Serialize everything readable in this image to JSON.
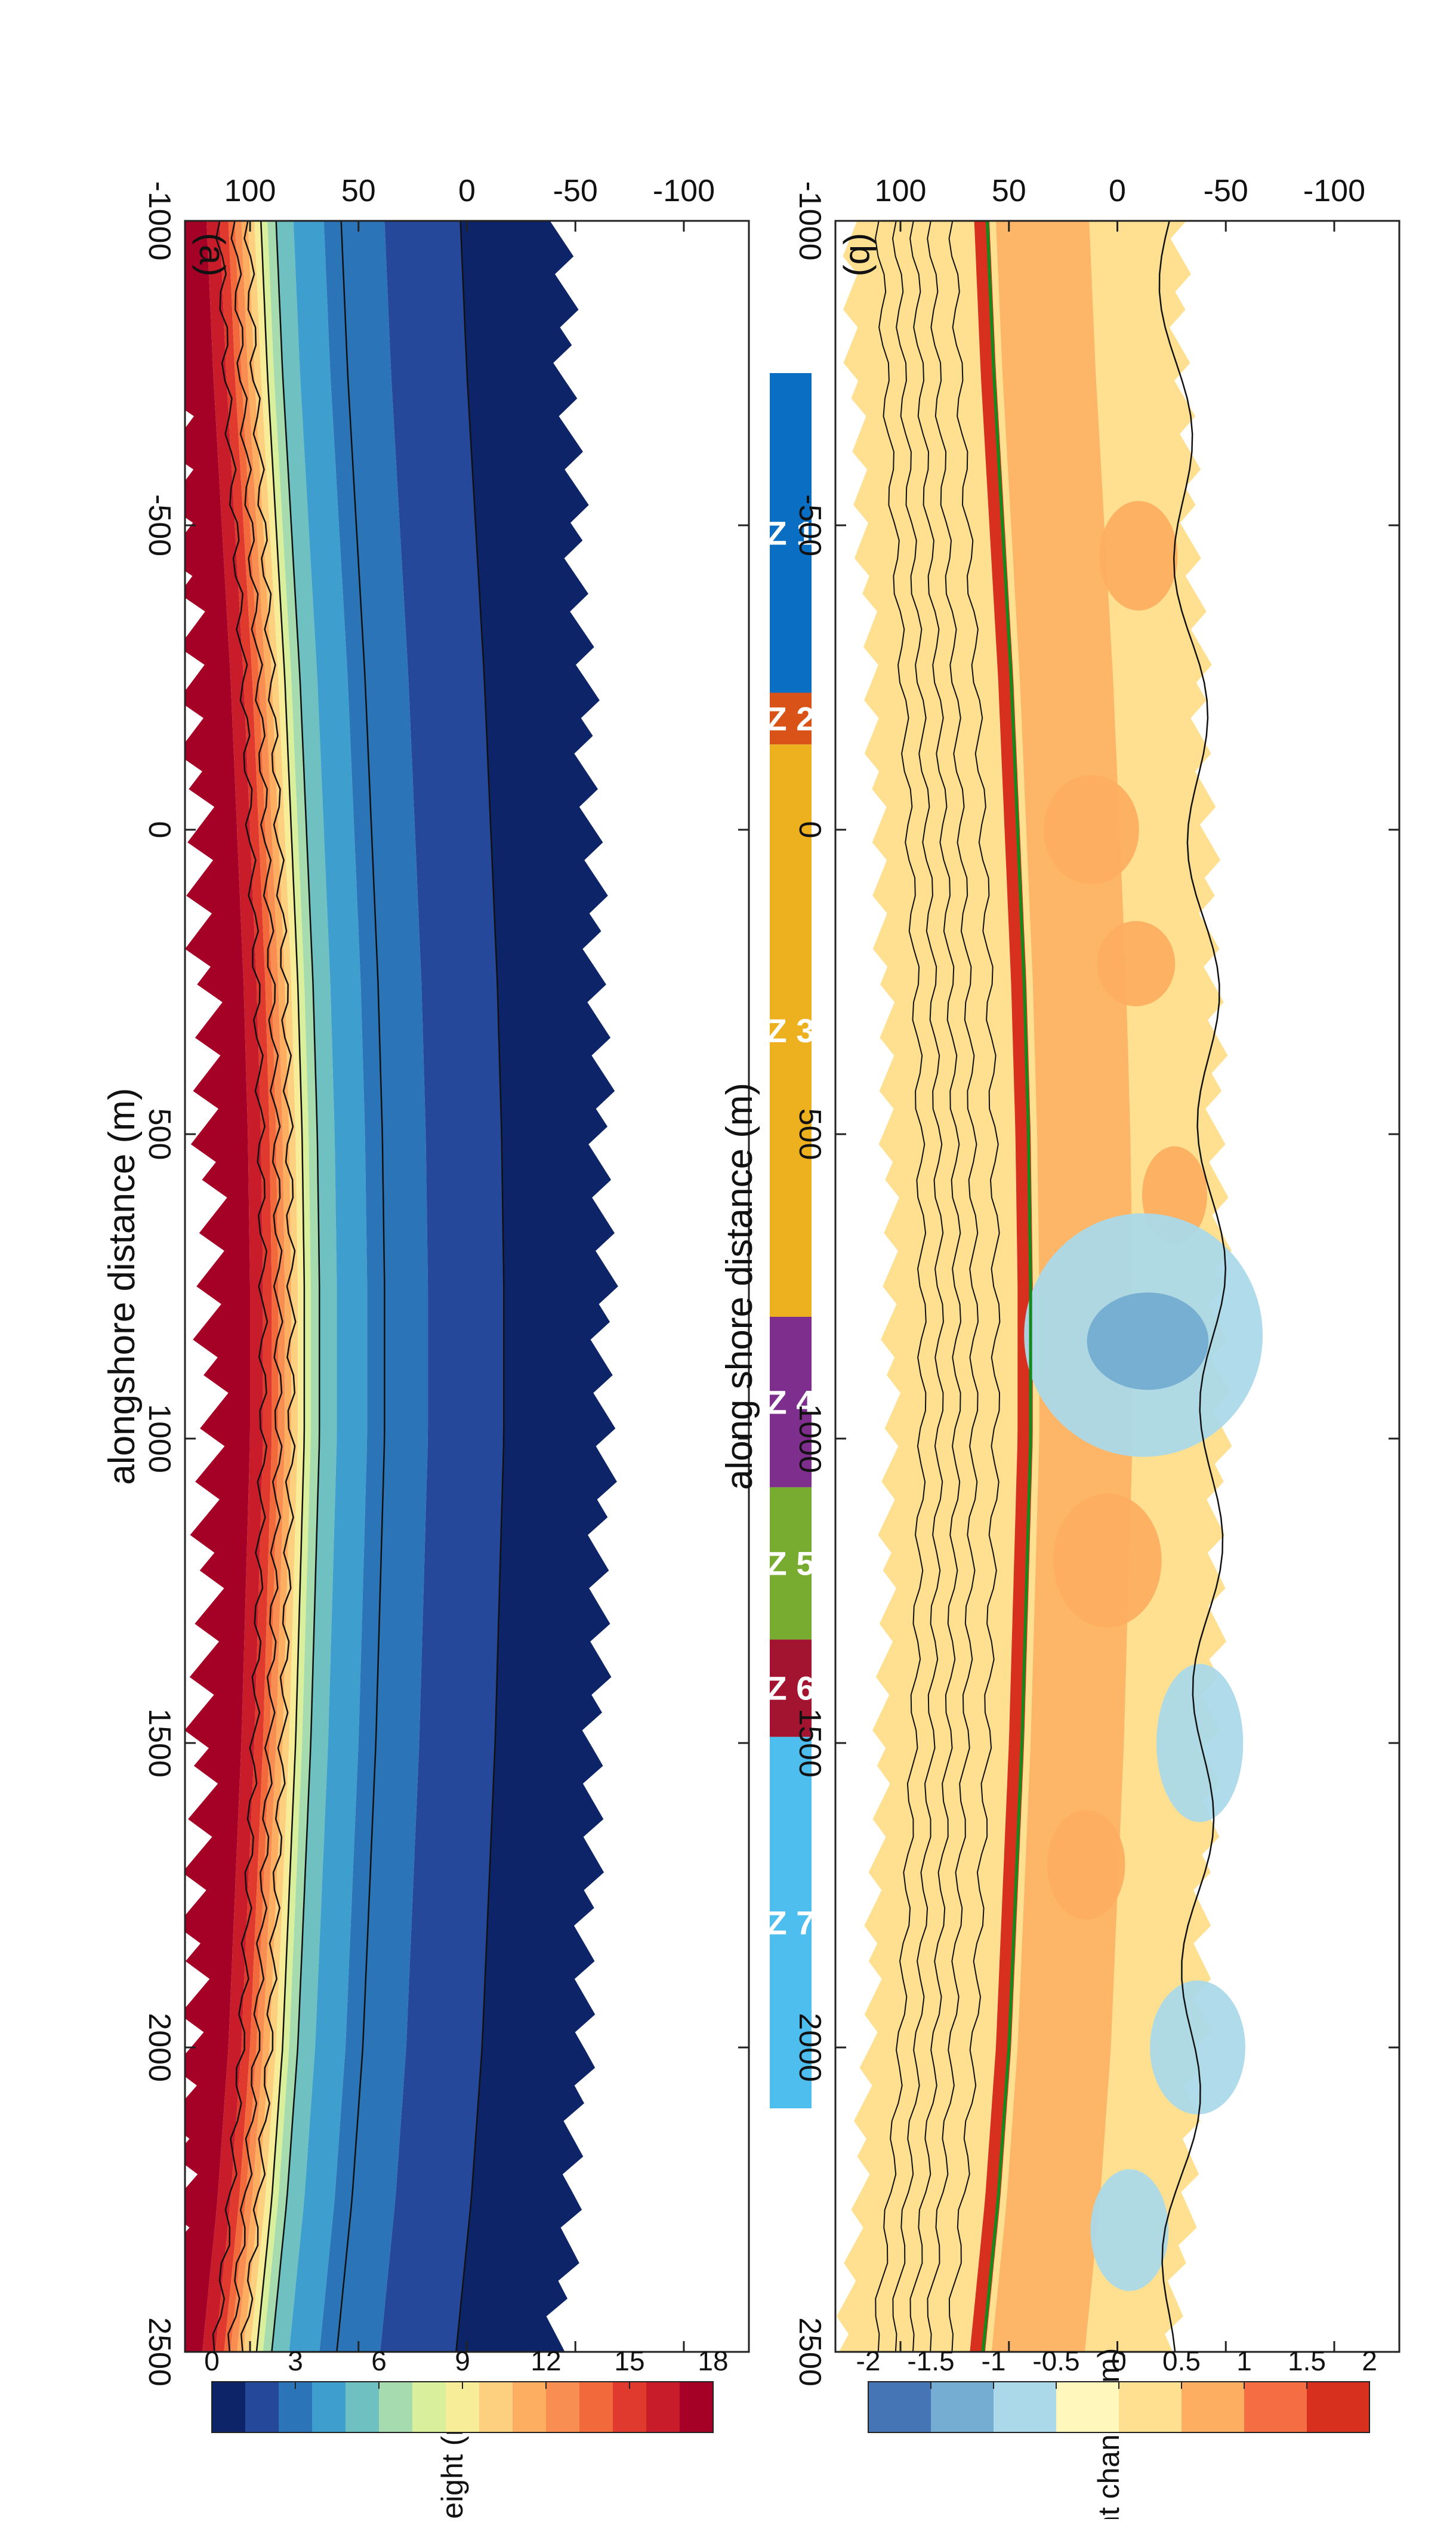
{
  "chart_data": [
    {
      "type": "heatmap",
      "panel_label": "(a)",
      "xlabel": "alongshore distance (m)",
      "ylabel": "",
      "xlim": [
        -1000,
        2500
      ],
      "ylim": [
        -130,
        130
      ],
      "xticks": [
        -1000,
        -500,
        0,
        500,
        1000,
        1500,
        2000,
        2500
      ],
      "yticks": [
        100,
        50,
        0,
        -50,
        -100
      ],
      "shoreline": {
        "x": [
          -1000,
          -750,
          -500,
          -250,
          0,
          250,
          500,
          750,
          1000,
          1250,
          1500,
          1750,
          2000,
          2250,
          2500
        ],
        "y": [
          58,
          55,
          51,
          47,
          44,
          41,
          39,
          38,
          38,
          40,
          42,
          45,
          48,
          53,
          60
        ]
      },
      "height_bands_offset_m": [
        45,
        34,
        22,
        6,
        -14
      ],
      "colorbar": {
        "title": "height (m)",
        "ticks": [
          18,
          15,
          12,
          9,
          6,
          3,
          0
        ],
        "colors": [
          "#a50026",
          "#c91c2b",
          "#e03a2f",
          "#f26a3b",
          "#f98e52",
          "#fdae61",
          "#fdd080",
          "#f7ed99",
          "#d9ef9c",
          "#a6dbb0",
          "#6ec1c0",
          "#3e9fce",
          "#2b74b8",
          "#26489a",
          "#0d2469"
        ]
      }
    },
    {
      "type": "heatmap",
      "panel_label": "(b)",
      "xlabel": "along shore distance (m)",
      "ylabel": "",
      "xlim": [
        -1000,
        2500
      ],
      "ylim": [
        -130,
        130
      ],
      "xticks": [
        -1000,
        -500,
        0,
        500,
        1000,
        1500,
        2000,
        2500
      ],
      "yticks": [
        100,
        50,
        0,
        -50,
        -100
      ],
      "colorbar": {
        "title": "height change (m)",
        "ticks": [
          "2",
          "1.5",
          "1",
          "0.5",
          "0",
          "-0.5",
          "-1",
          "-1.5",
          "-2"
        ],
        "colors": [
          "#d7301f",
          "#f46d43",
          "#fdae61",
          "#fee090",
          "#fff7bc",
          "#abd9e9",
          "#74add1",
          "#4575b4"
        ]
      },
      "zones": [
        {
          "label": "Z 1",
          "x0": -750,
          "x1": -225,
          "color": "#0a6fc2"
        },
        {
          "label": "Z 2",
          "x0": -225,
          "x1": -140,
          "color": "#d95319"
        },
        {
          "label": "Z 3",
          "x0": -140,
          "x1": 800,
          "color": "#edb120"
        },
        {
          "label": "Z 4",
          "x0": 800,
          "x1": 1080,
          "color": "#7e2f8e"
        },
        {
          "label": "Z 5",
          "x0": 1080,
          "x1": 1330,
          "color": "#77ac30"
        },
        {
          "label": "Z 6",
          "x0": 1330,
          "x1": 1490,
          "color": "#a2142f"
        },
        {
          "label": "Z 7",
          "x0": 1490,
          "x1": 2100,
          "color": "#4dbeee"
        }
      ],
      "change_patches": [
        {
          "x": 0,
          "y": 8,
          "rx": 90,
          "ry": 22,
          "value": 1
        },
        {
          "x": 220,
          "y": -10,
          "rx": 70,
          "ry": 18,
          "value": 1
        },
        {
          "x": 600,
          "y": -25,
          "rx": 80,
          "ry": 15,
          "value": 1
        },
        {
          "x": 1200,
          "y": 5,
          "rx": 110,
          "ry": 25,
          "value": 1
        },
        {
          "x": 1700,
          "y": 10,
          "rx": 90,
          "ry": 18,
          "value": 1
        },
        {
          "x": -450,
          "y": -20,
          "rx": 90,
          "ry": 18,
          "value": 1
        },
        {
          "x": 830,
          "y": -10,
          "rx": 200,
          "ry": 55,
          "value": -0.75
        },
        {
          "x": 840,
          "y": -12,
          "rx": 80,
          "ry": 28,
          "value": -1.25
        },
        {
          "x": 1500,
          "y": -40,
          "rx": 130,
          "ry": 20,
          "value": -0.75
        },
        {
          "x": 2000,
          "y": -45,
          "rx": 110,
          "ry": 22,
          "value": -0.75
        },
        {
          "x": 2300,
          "y": -20,
          "rx": 100,
          "ry": 18,
          "value": -0.75
        }
      ]
    }
  ]
}
